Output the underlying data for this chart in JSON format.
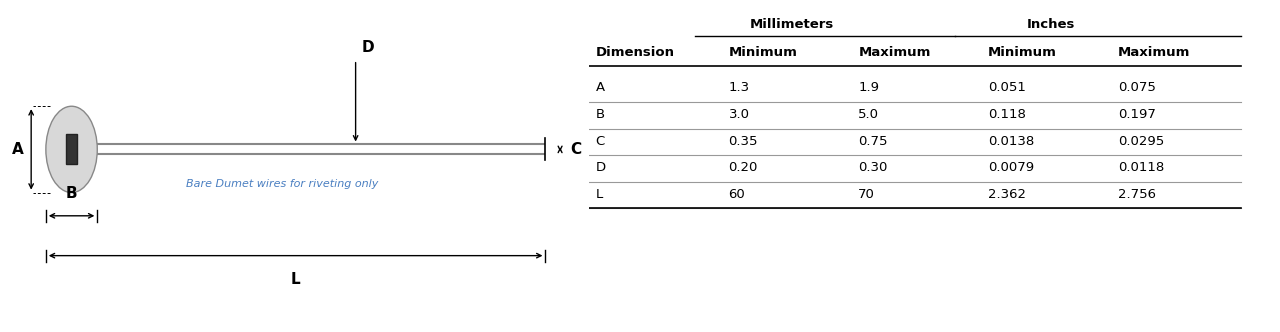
{
  "table_headers_sub": [
    "Dimension",
    "Minimum",
    "Maximum",
    "Minimum",
    "Maximum"
  ],
  "table_rows": [
    [
      "A",
      "1.3",
      "1.9",
      "0.051",
      "0.075"
    ],
    [
      "B",
      "3.0",
      "5.0",
      "0.118",
      "0.197"
    ],
    [
      "C",
      "0.35",
      "0.75",
      "0.0138",
      "0.0295"
    ],
    [
      "D",
      "0.20",
      "0.30",
      "0.0079",
      "0.0118"
    ],
    [
      "L",
      "60",
      "70",
      "2.362",
      "2.756"
    ]
  ],
  "note": "Bare Dumet wires for riveting only",
  "note_color": "#4a7fc1",
  "bg_color": "#ffffff",
  "text_color": "#000000",
  "line_color": "#000000",
  "mm_label": "Millimeters",
  "inch_label": "Inches",
  "diagram_labels": [
    "A",
    "B",
    "C",
    "D",
    "L"
  ]
}
